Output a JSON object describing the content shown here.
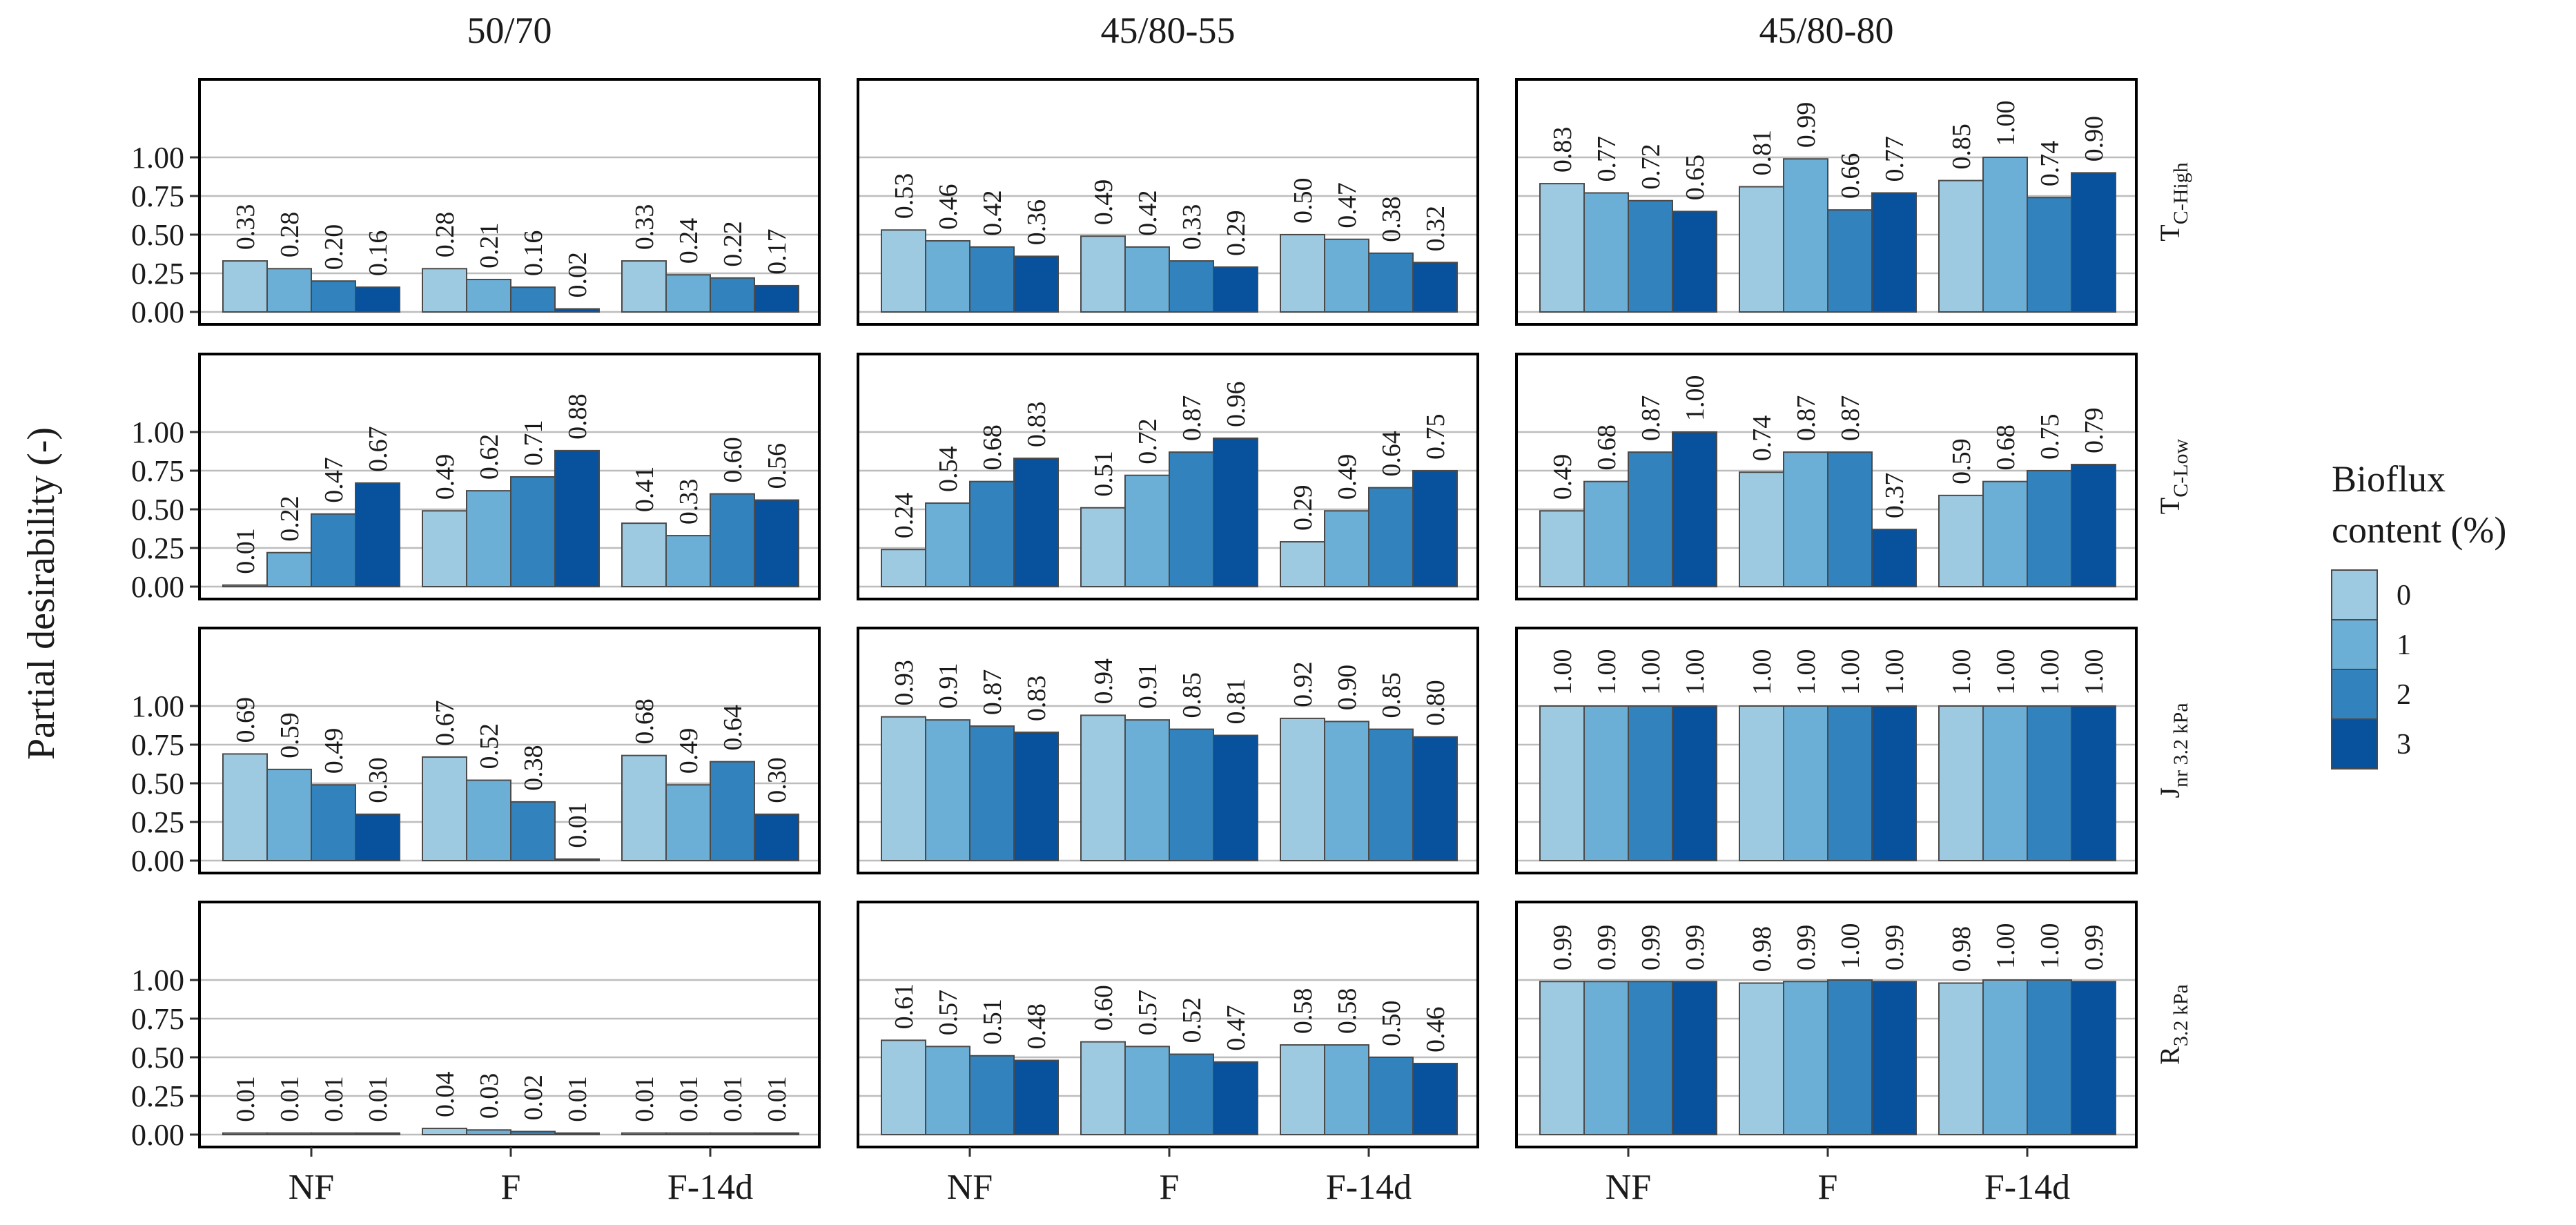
{
  "chart_data": {
    "type": "bar",
    "layout": "faceted 4 rows x 3 columns",
    "ylabel": "Partial desirability (-)",
    "ylim": [
      0,
      1
    ],
    "yticks": [
      "0.00",
      "0.25",
      "0.50",
      "0.75",
      "1.00"
    ],
    "grid": true,
    "legend": {
      "title_line1": "Bioflux",
      "title_line2": "content (%)",
      "placement": "right",
      "entries": [
        {
          "label": "0",
          "color": "#9ecae1"
        },
        {
          "label": "1",
          "color": "#6baed6"
        },
        {
          "label": "2",
          "color": "#3182bd"
        },
        {
          "label": "3",
          "color": "#08519c"
        }
      ]
    },
    "categories": [
      "NF",
      "F",
      "F-14d"
    ],
    "columns": [
      "50/70",
      "45/80-55",
      "45/80-80"
    ],
    "rows": [
      {
        "main": "T",
        "sub": "C-High"
      },
      {
        "main": "T",
        "sub": "C-Low"
      },
      {
        "main": "J",
        "sub": "nr 3.2 kPa"
      },
      {
        "main": "R",
        "sub": "3.2 kPa"
      }
    ],
    "values": [
      [
        [
          [
            0.33,
            0.28,
            0.2,
            0.16
          ],
          [
            0.28,
            0.21,
            0.16,
            0.02
          ],
          [
            0.33,
            0.24,
            0.22,
            0.17
          ]
        ],
        [
          [
            0.53,
            0.46,
            0.42,
            0.36
          ],
          [
            0.49,
            0.42,
            0.33,
            0.29
          ],
          [
            0.5,
            0.47,
            0.38,
            0.32
          ]
        ],
        [
          [
            0.83,
            0.77,
            0.72,
            0.65
          ],
          [
            0.81,
            0.99,
            0.66,
            0.77
          ],
          [
            0.85,
            1.0,
            0.74,
            0.9
          ]
        ]
      ],
      [
        [
          [
            0.01,
            0.22,
            0.47,
            0.67
          ],
          [
            0.49,
            0.62,
            0.71,
            0.88
          ],
          [
            0.41,
            0.33,
            0.6,
            0.56
          ]
        ],
        [
          [
            0.24,
            0.54,
            0.68,
            0.83
          ],
          [
            0.51,
            0.72,
            0.87,
            0.96
          ],
          [
            0.29,
            0.49,
            0.64,
            0.75
          ]
        ],
        [
          [
            0.49,
            0.68,
            0.87,
            1.0
          ],
          [
            0.74,
            0.87,
            0.87,
            0.37
          ],
          [
            0.59,
            0.68,
            0.75,
            0.79
          ]
        ]
      ],
      [
        [
          [
            0.69,
            0.59,
            0.49,
            0.3
          ],
          [
            0.67,
            0.52,
            0.38,
            0.01
          ],
          [
            0.68,
            0.49,
            0.64,
            0.3
          ]
        ],
        [
          [
            0.93,
            0.91,
            0.87,
            0.83
          ],
          [
            0.94,
            0.91,
            0.85,
            0.81
          ],
          [
            0.92,
            0.9,
            0.85,
            0.8
          ]
        ],
        [
          [
            1.0,
            1.0,
            1.0,
            1.0
          ],
          [
            1.0,
            1.0,
            1.0,
            1.0
          ],
          [
            1.0,
            1.0,
            1.0,
            1.0
          ]
        ]
      ],
      [
        [
          [
            0.01,
            0.01,
            0.01,
            0.01
          ],
          [
            0.04,
            0.03,
            0.02,
            0.01
          ],
          [
            0.01,
            0.01,
            0.01,
            0.01
          ]
        ],
        [
          [
            0.61,
            0.57,
            0.51,
            0.48
          ],
          [
            0.6,
            0.57,
            0.52,
            0.47
          ],
          [
            0.58,
            0.58,
            0.5,
            0.46
          ]
        ],
        [
          [
            0.99,
            0.99,
            0.99,
            0.99
          ],
          [
            0.98,
            0.99,
            1.0,
            0.99
          ],
          [
            0.98,
            1.0,
            1.0,
            0.99
          ]
        ]
      ]
    ]
  }
}
